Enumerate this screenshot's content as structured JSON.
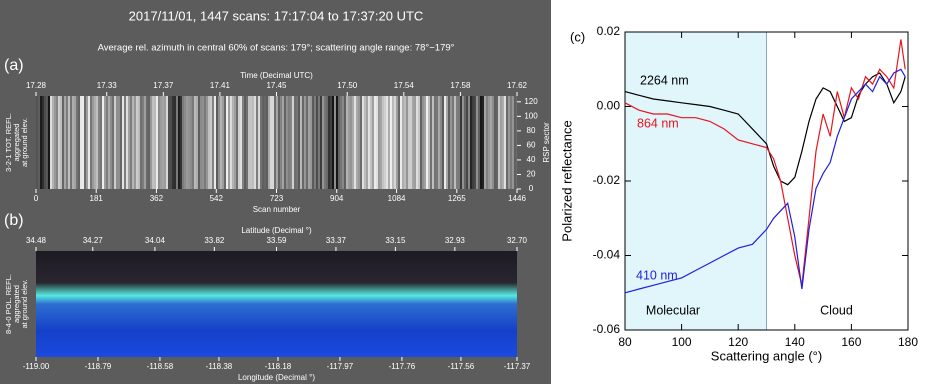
{
  "chart_data": [
    {
      "type": "image",
      "panel_label": "(a)",
      "title": "2017/11/01, 1447 scans: 17:17:04 to 17:37:20 UTC",
      "subtitle": "Average rel. azimuth in central 60% of scans: 179°; scattering angle range: 78°−179°",
      "x2label": "Time (Decimal UTC)",
      "x2lim": [
        17.28,
        17.62
      ],
      "x2ticks": [
        17.28,
        17.33,
        17.37,
        17.41,
        17.45,
        {
          "value": 17.5,
          "label": "17.50"
        },
        17.54,
        17.58,
        17.62
      ],
      "xlabel": "Scan number",
      "xlim": [
        0,
        1446
      ],
      "xticks": [
        0,
        181,
        362,
        542,
        723,
        904,
        1084,
        1265,
        1446
      ],
      "ylabel": [
        "3-2-1 TOT. REFL.",
        "aggregated",
        "at ground elev."
      ],
      "y2label": "RSP sector",
      "y2lim": [
        0,
        128
      ],
      "y2ticks": [
        0,
        20,
        40,
        60,
        80,
        100,
        120
      ]
    },
    {
      "type": "image",
      "panel_label": "(b)",
      "x2label": "Latitude (Decimal °)",
      "x2lim": [
        34.48,
        {
          "value": 32.7,
          "label": "32.70"
        }
      ],
      "x2ticks": [
        34.48,
        34.27,
        34.04,
        33.82,
        33.59,
        33.37,
        33.15,
        32.93,
        {
          "value": 32.7,
          "label": "32.70"
        }
      ],
      "xlabel": "Longitude (Decimal °)",
      "xlim": [
        {
          "value": -119,
          "label": "-119.00"
        },
        -117.37
      ],
      "xticks": [
        {
          "value": -119,
          "label": "-119.00"
        },
        -118.79,
        -118.58,
        -118.38,
        -118.18,
        -117.97,
        -117.76,
        -117.56,
        -117.37
      ],
      "ylabel": [
        "8-4-0 POL. REFL.",
        "aggregated",
        "at ground elev."
      ]
    },
    {
      "type": "line",
      "panel_label": "(c)",
      "xlabel": "Scattering angle (°)",
      "ylabel": "Polarized  reflectance",
      "xlim": [
        80,
        180
      ],
      "xticks": [
        80,
        100,
        120,
        140,
        160,
        180
      ],
      "ylim": [
        -0.06,
        0.02
      ],
      "yticks": [
        -0.06,
        -0.04,
        -0.02,
        {
          "value": 0,
          "label": "0.00"
        },
        0.02
      ],
      "shaded_region": {
        "xlim": [
          80,
          130
        ],
        "color": "#e1f6fb",
        "edge_color": "#8aa6c8"
      },
      "annotations": [
        "Molecular",
        "Cloud"
      ],
      "x": [
        80,
        85,
        90,
        95,
        100,
        105,
        110,
        115,
        120,
        125,
        130,
        132.5,
        135,
        137.5,
        140,
        142.5,
        145,
        147.5,
        150,
        152.5,
        155,
        157.5,
        160,
        162.5,
        165,
        167.5,
        170,
        172.5,
        175,
        177.5,
        179
      ],
      "series": [
        {
          "name": "2264 nm",
          "color": "#000000",
          "values": [
            0.004,
            0.003,
            0.002,
            0.0015,
            0.001,
            0.0005,
            0,
            -0.001,
            -0.002,
            -0.006,
            -0.01,
            -0.016,
            -0.02,
            -0.021,
            -0.019,
            -0.012,
            -0.004,
            0.002,
            0.005,
            0.004,
            0,
            -0.004,
            -0.003,
            0.003,
            0.006,
            0.008,
            0.009,
            0.006,
            0.001,
            0.004,
            0.008
          ]
        },
        {
          "name": "864 nm",
          "color": "#e8141e",
          "values": [
            0.001,
            -0.001,
            -0.002,
            -0.002,
            -0.003,
            -0.003,
            -0.004,
            -0.006,
            -0.009,
            -0.01,
            -0.011,
            -0.014,
            -0.02,
            -0.03,
            -0.04,
            -0.048,
            -0.03,
            -0.012,
            -0.002,
            -0.008,
            0.004,
            -0.003,
            0.005,
            0.002,
            0.008,
            0.006,
            0.01,
            0.008,
            0.005,
            0.018,
            0.01
          ]
        },
        {
          "name": "410 nm",
          "color": "#1f1fe0",
          "values": [
            -0.05,
            -0.049,
            -0.048,
            -0.047,
            -0.046,
            -0.044,
            -0.042,
            -0.04,
            -0.038,
            -0.037,
            -0.033,
            -0.03,
            -0.028,
            -0.026,
            -0.035,
            -0.049,
            -0.033,
            -0.022,
            -0.018,
            -0.015,
            -0.008,
            -0.003,
            0.002,
            0.004,
            0.006,
            0.004,
            0.008,
            0.006,
            0.009,
            0.01,
            0.008
          ]
        }
      ]
    }
  ]
}
